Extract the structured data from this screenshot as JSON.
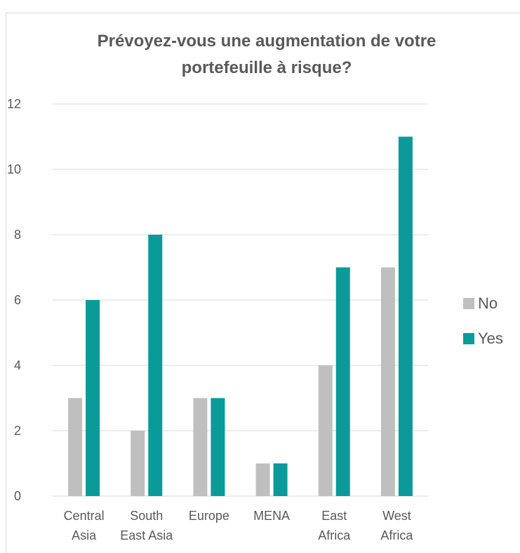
{
  "chart_data": {
    "type": "bar",
    "title": "Prévoyez-vous une augmentation de votre portefeuille à risque?",
    "categories": [
      "Central Asia",
      "South East Asia",
      "Europe",
      "MENA",
      "East Africa",
      "West Africa"
    ],
    "series": [
      {
        "name": "No",
        "color": "#bfbfbf",
        "values": [
          3,
          2,
          3,
          1,
          4,
          7
        ]
      },
      {
        "name": "Yes",
        "color": "#0b9a9a",
        "values": [
          6,
          8,
          3,
          1,
          7,
          11
        ]
      }
    ],
    "ylim": [
      0,
      12
    ],
    "yticks": [
      0,
      2,
      4,
      6,
      8,
      10,
      12
    ],
    "grid": true,
    "legend": "right"
  }
}
